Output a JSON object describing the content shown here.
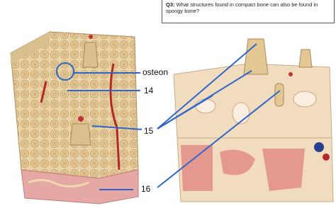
{
  "question": {
    "number": "Q3:",
    "text": "What structures found in compact bone can also be found in spongy bone?"
  },
  "labels": [
    "osteon",
    "14",
    "15",
    "16"
  ]
}
